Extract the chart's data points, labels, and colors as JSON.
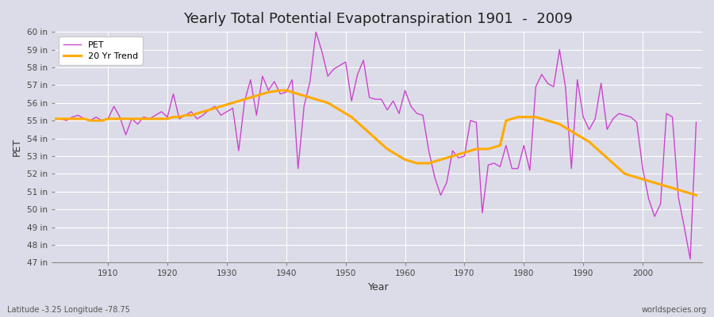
{
  "title": "Yearly Total Potential Evapotranspiration 1901  -  2009",
  "xlabel": "Year",
  "ylabel": "PET",
  "subtitle_lat": "Latitude -3.25 Longitude -78.75",
  "watermark": "worldspecies.org",
  "pet_color": "#cc44cc",
  "trend_color": "#ffaa00",
  "bg_color": "#dcdce8",
  "grid_color": "#ffffff",
  "ylim": [
    47,
    60
  ],
  "yticks": [
    47,
    48,
    49,
    50,
    51,
    52,
    53,
    54,
    55,
    56,
    57,
    58,
    59,
    60
  ],
  "xlim": [
    1901,
    2010
  ],
  "xticks": [
    1910,
    1920,
    1930,
    1940,
    1950,
    1960,
    1970,
    1980,
    1990,
    2000
  ],
  "years": [
    1901,
    1902,
    1903,
    1904,
    1905,
    1906,
    1907,
    1908,
    1909,
    1910,
    1911,
    1912,
    1913,
    1914,
    1915,
    1916,
    1917,
    1918,
    1919,
    1920,
    1921,
    1922,
    1923,
    1924,
    1925,
    1926,
    1927,
    1928,
    1929,
    1930,
    1931,
    1932,
    1933,
    1934,
    1935,
    1936,
    1937,
    1938,
    1939,
    1940,
    1941,
    1942,
    1943,
    1944,
    1945,
    1946,
    1947,
    1948,
    1949,
    1950,
    1951,
    1952,
    1953,
    1954,
    1955,
    1956,
    1957,
    1958,
    1959,
    1960,
    1961,
    1962,
    1963,
    1964,
    1965,
    1966,
    1967,
    1968,
    1969,
    1970,
    1971,
    1972,
    1973,
    1974,
    1975,
    1976,
    1977,
    1978,
    1979,
    1980,
    1981,
    1982,
    1983,
    1984,
    1985,
    1986,
    1987,
    1988,
    1989,
    1990,
    1991,
    1992,
    1993,
    1994,
    1995,
    1996,
    1997,
    1998,
    1999,
    2000,
    2001,
    2002,
    2003,
    2004,
    2005,
    2006,
    2007,
    2008,
    2009
  ],
  "pet_values": [
    55.1,
    55.1,
    55.0,
    55.2,
    55.3,
    55.1,
    55.0,
    55.2,
    55.0,
    55.1,
    55.8,
    55.2,
    54.2,
    55.1,
    54.8,
    55.2,
    55.1,
    55.3,
    55.5,
    55.2,
    56.5,
    55.1,
    55.3,
    55.5,
    55.1,
    55.3,
    55.6,
    55.8,
    55.3,
    55.5,
    55.7,
    53.3,
    56.1,
    57.3,
    55.3,
    57.5,
    56.7,
    57.2,
    56.5,
    56.6,
    57.3,
    52.3,
    55.8,
    57.2,
    60.0,
    58.9,
    57.5,
    57.9,
    58.1,
    58.3,
    56.1,
    57.6,
    58.4,
    56.3,
    56.2,
    56.2,
    55.6,
    56.1,
    55.4,
    56.7,
    55.8,
    55.4,
    55.3,
    53.3,
    51.8,
    50.8,
    51.5,
    53.3,
    52.9,
    53.0,
    55.0,
    54.9,
    49.8,
    52.5,
    52.6,
    52.4,
    53.6,
    52.3,
    52.3,
    53.6,
    52.2,
    56.9,
    57.6,
    57.1,
    56.9,
    59.0,
    56.9,
    52.3,
    57.3,
    55.2,
    54.5,
    55.1,
    57.1,
    54.5,
    55.1,
    55.4,
    55.3,
    55.2,
    54.9,
    52.3,
    50.6,
    49.6,
    50.3,
    55.4,
    55.2,
    50.7,
    49.0,
    47.2,
    54.9
  ],
  "trend_years": [
    1901,
    1902,
    1903,
    1904,
    1905,
    1906,
    1907,
    1908,
    1909,
    1910,
    1911,
    1912,
    1913,
    1914,
    1915,
    1916,
    1917,
    1918,
    1919,
    1920,
    1921,
    1922,
    1923,
    1924,
    1925,
    1926,
    1927,
    1928,
    1929,
    1930,
    1931,
    1932,
    1933,
    1934,
    1935,
    1936,
    1937,
    1938,
    1939,
    1940,
    1941,
    1942,
    1943,
    1944,
    1945,
    1946,
    1947,
    1948,
    1949,
    1950,
    1951,
    1952,
    1953,
    1954,
    1955,
    1956,
    1957,
    1958,
    1959,
    1960,
    1961,
    1962,
    1963,
    1964,
    1965,
    1966,
    1967,
    1968,
    1969,
    1970,
    1971,
    1972,
    1973,
    1974,
    1975,
    1976,
    1977,
    1978,
    1979,
    1980,
    1981,
    1982,
    1983,
    1984,
    1985,
    1986,
    1987,
    1988,
    1989,
    1990,
    1991,
    1992,
    1993,
    1994,
    1995,
    1996,
    1997,
    1998,
    1999,
    2000,
    2001,
    2002,
    2003,
    2004,
    2005,
    2006,
    2007,
    2008,
    2009
  ],
  "trend_values": [
    55.1,
    55.1,
    55.1,
    55.1,
    55.1,
    55.1,
    55.0,
    55.0,
    55.0,
    55.1,
    55.1,
    55.1,
    55.1,
    55.1,
    55.1,
    55.1,
    55.1,
    55.1,
    55.1,
    55.1,
    55.2,
    55.2,
    55.3,
    55.3,
    55.4,
    55.5,
    55.6,
    55.7,
    55.8,
    55.9,
    56.0,
    56.1,
    56.2,
    56.3,
    56.4,
    56.5,
    56.6,
    56.65,
    56.7,
    56.7,
    56.6,
    56.5,
    56.4,
    56.3,
    56.2,
    56.1,
    56.0,
    55.8,
    55.6,
    55.4,
    55.2,
    54.9,
    54.6,
    54.3,
    54.0,
    53.7,
    53.4,
    53.2,
    53.0,
    52.8,
    52.7,
    52.6,
    52.6,
    52.6,
    52.7,
    52.8,
    52.9,
    53.0,
    53.1,
    53.2,
    53.3,
    53.4,
    53.4,
    53.4,
    53.5,
    53.6,
    55.0,
    55.1,
    55.2,
    55.2,
    55.2,
    55.2,
    55.1,
    55.0,
    54.9,
    54.8,
    54.6,
    54.4,
    54.2,
    54.0,
    53.8,
    53.5,
    53.2,
    52.9,
    52.6,
    52.3,
    52.0,
    51.9,
    51.8,
    51.7,
    51.6,
    51.5,
    51.4,
    51.3,
    51.2,
    51.1,
    51.0,
    50.9,
    50.8
  ]
}
